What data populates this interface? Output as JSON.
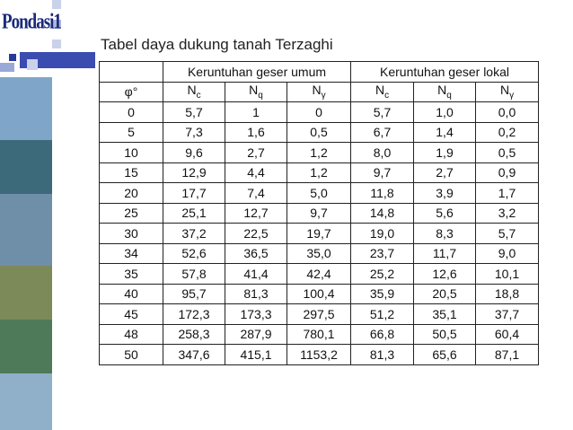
{
  "header": {
    "logo": "Pondasi1",
    "title": "Tabel daya dukung tanah Terzaghi"
  },
  "table": {
    "groups": [
      "Keruntuhan geser umum",
      "Keruntuhan geser lokal"
    ],
    "columns": [
      {
        "main": "φ°"
      },
      {
        "main": "N",
        "sub": "c"
      },
      {
        "main": "N",
        "sub": "q"
      },
      {
        "main": "N",
        "sub": "γ"
      },
      {
        "main": "N",
        "sub": "c"
      },
      {
        "main": "N",
        "sub": "q"
      },
      {
        "main": "N",
        "sub": "γ"
      }
    ],
    "rows": [
      [
        "0",
        "5,7",
        "1",
        "0",
        "5,7",
        "1,0",
        "0,0"
      ],
      [
        "5",
        "7,3",
        "1,6",
        "0,5",
        "6,7",
        "1,4",
        "0,2"
      ],
      [
        "10",
        "9,6",
        "2,7",
        "1,2",
        "8,0",
        "1,9",
        "0,5"
      ],
      [
        "15",
        "12,9",
        "4,4",
        "1,2",
        "9,7",
        "2,7",
        "0,9"
      ],
      [
        "20",
        "17,7",
        "7,4",
        "5,0",
        "11,8",
        "3,9",
        "1,7"
      ],
      [
        "25",
        "25,1",
        "12,7",
        "9,7",
        "14,8",
        "5,6",
        "3,2"
      ],
      [
        "30",
        "37,2",
        "22,5",
        "19,7",
        "19,0",
        "8,3",
        "5,7"
      ],
      [
        "34",
        "52,6",
        "36,5",
        "35,0",
        "23,7",
        "11,7",
        "9,0"
      ],
      [
        "35",
        "57,8",
        "41,4",
        "42,4",
        "25,2",
        "12,6",
        "10,1"
      ],
      [
        "40",
        "95,7",
        "81,3",
        "100,4",
        "35,9",
        "20,5",
        "18,8"
      ],
      [
        "45",
        "172,3",
        "173,3",
        "297,5",
        "51,2",
        "35,1",
        "37,7"
      ],
      [
        "48",
        "258,3",
        "287,9",
        "780,1",
        "66,8",
        "50,5",
        "60,4"
      ],
      [
        "50",
        "347,6",
        "415,1",
        "1153,2",
        "81,3",
        "65,6",
        "87,1"
      ]
    ]
  }
}
